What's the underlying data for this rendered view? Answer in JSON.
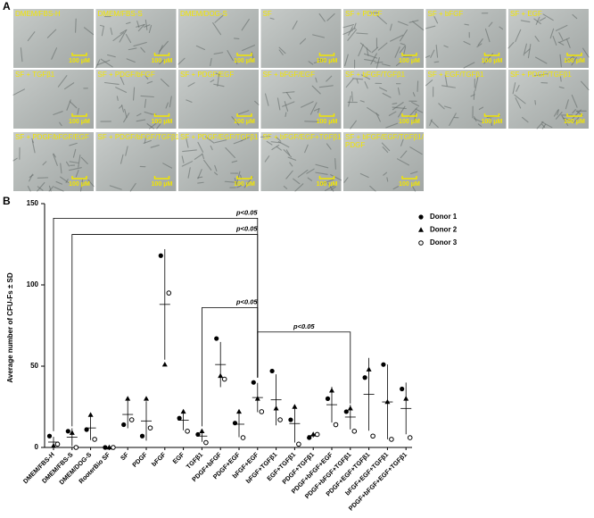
{
  "panel_a": {
    "letter": "A",
    "scale_label": "100 μM",
    "panels": [
      "DMEM/FBS-H",
      "DMEM/FBS-S",
      "DMEM/DOG-S",
      "SF",
      "SF + PDGF",
      "SF + bFGF",
      "SF + EGF",
      "SF + TGFβ1",
      "SF + PDGF/bFGF",
      "SF + PDGF/EGF",
      "SF + bFGF/EGF",
      "SF + bFGF/TGFβ1",
      "SF + EGF/TGFβ1",
      "SF + PDGF/TGFβ1",
      "SF + PDGF/bFGF/EGF",
      "SF + PDGF/bFGF/TGFβ1",
      "SF + PDGF/EGF/TGFβ1",
      "SF + bFGF/EGF+TGFβ1",
      "SF + bFGF/EGF/TGFβ1/\nPDGF"
    ]
  },
  "chart_data": {
    "type": "dot",
    "letter": "B",
    "ylabel": "Average number of CFU-Fs ± SD",
    "ylim": [
      0,
      150
    ],
    "yticks": [
      0,
      50,
      100,
      150
    ],
    "categories": [
      "DMEM/FBS-H",
      "DMEM/FBS-S",
      "DMEM/DOG-S",
      "RooterBio SF",
      "SF",
      "PDGF",
      "bFGF",
      "EGF",
      "TGFβ1",
      "PDGF+bFGF",
      "PDGF+EGF",
      "bFGF+EGF",
      "bFGF+TGFβ1",
      "EGF+TGFβ1",
      "PDGF+TGFβ1",
      "PDGF+bFGF+EGF",
      "PDGF+bFGF+TGFβ1",
      "PDGF+EGF+TGFβ1",
      "bFGF+EGF+TGFβ1",
      "PDGF+bFGF+EGF+TGFβ1"
    ],
    "series": [
      {
        "name": "Donor 1",
        "marker": "circle",
        "color": "#000000",
        "values": [
          7,
          10,
          11,
          0,
          14,
          7,
          118,
          18,
          8,
          67,
          15,
          40,
          47,
          17,
          6,
          30,
          22,
          43,
          51,
          36
        ]
      },
      {
        "name": "Donor 2",
        "marker": "triangle",
        "color": "#000000",
        "values": [
          1,
          9,
          20,
          0,
          30,
          30,
          51,
          22,
          10,
          44,
          22,
          30,
          24,
          25,
          8,
          35,
          24,
          48,
          28,
          30
        ]
      },
      {
        "name": "Donor 3",
        "marker": "open-circle",
        "color": "#000000",
        "values": [
          2,
          0,
          5,
          0,
          17,
          12,
          95,
          10,
          3,
          42,
          6,
          22,
          17,
          2,
          8,
          14,
          10,
          7,
          5,
          6
        ]
      }
    ],
    "mean": [
      3.3,
      6.3,
      12,
      0,
      20.3,
      16.3,
      88,
      16.7,
      7,
      51,
      14.3,
      30.7,
      29.3,
      14.7,
      7.3,
      26.3,
      18.7,
      32.7,
      28,
      24
    ],
    "sd": [
      3.2,
      5.5,
      7.5,
      0,
      8.5,
      12.1,
      34,
      6.1,
      3.6,
      13.9,
      8,
      9,
      15.7,
      11.7,
      1.2,
      11,
      7.6,
      22.4,
      23,
      15.9
    ],
    "annotations": [
      {
        "text": "p<0.05",
        "y": 141,
        "between": [
          0,
          11
        ]
      },
      {
        "text": "p<0.05",
        "y": 131,
        "between": [
          1,
          11
        ]
      },
      {
        "text": "p<0.05",
        "y": 86,
        "between": [
          8,
          11
        ]
      },
      {
        "text": "p<0.05",
        "y": 71,
        "between": [
          11,
          16
        ]
      }
    ]
  }
}
